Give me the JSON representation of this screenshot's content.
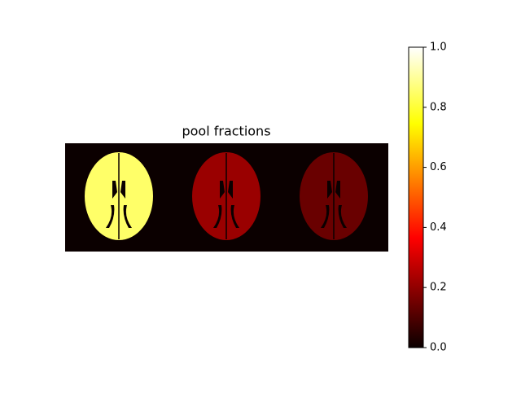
{
  "chart_data": {
    "type": "image",
    "title": "pool fractions",
    "colormap": "hot",
    "values": [
      0.85,
      0.22,
      0.15
    ],
    "ylim": [
      0,
      1
    ],
    "yticks": [
      {
        "value": 0,
        "label": "0.0"
      },
      {
        "value": 0.2,
        "label": "0.2"
      },
      {
        "value": 0.4,
        "label": "0.4"
      },
      {
        "value": 0.6,
        "label": "0.6"
      },
      {
        "value": 0.8,
        "label": "0.8"
      },
      {
        "value": 1,
        "label": "1.0"
      }
    ]
  }
}
